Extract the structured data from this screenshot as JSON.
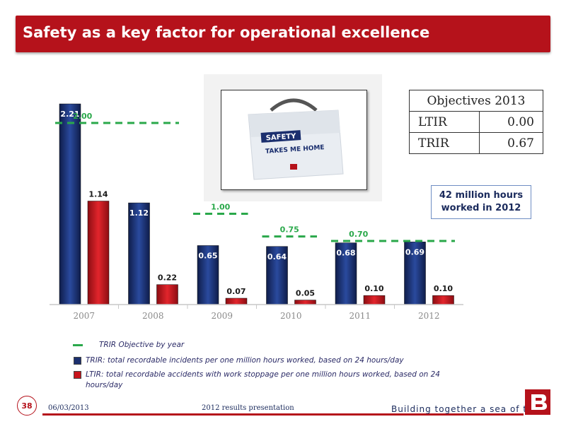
{
  "header": {
    "title": "Safety as a  key factor for operational excellence"
  },
  "chart_data": {
    "type": "bar",
    "categories": [
      "2007",
      "2008",
      "2009",
      "2010",
      "2011",
      "2012"
    ],
    "series": [
      {
        "name": "TRIR",
        "values": [
          2.21,
          1.12,
          0.65,
          0.64,
          0.68,
          0.69
        ],
        "labels": [
          "2.21",
          "1.12",
          "0.65",
          "0.64",
          "0.68",
          "0.69"
        ],
        "color": "#1b2f6e"
      },
      {
        "name": "LTIR",
        "values": [
          1.14,
          0.22,
          0.07,
          0.05,
          0.1,
          0.1
        ],
        "labels": [
          "1.14",
          "0.22",
          "0.07",
          "0.05",
          "0.10",
          "0.10"
        ],
        "color": "#c8141c"
      }
    ],
    "objectives": [
      {
        "category_from": "2007",
        "category_to": "2008",
        "value": 2.0,
        "label": "2.00"
      },
      {
        "category_from": "2009",
        "category_to": "2009",
        "value": 1.0,
        "label": "1.00"
      },
      {
        "category_from": "2010",
        "category_to": "2010",
        "value": 0.75,
        "label": "0.75"
      },
      {
        "category_from": "2011",
        "category_to": "2012",
        "value": 0.7,
        "label": "0.70"
      }
    ],
    "objective_color": "#2aa84a",
    "ylim": [
      0,
      2.21
    ]
  },
  "photo": {
    "line1": "SAFETY",
    "line2": "TAKES ME HOME"
  },
  "objectives_table": {
    "heading": "Objectives 2013",
    "rows": [
      {
        "label": "LTIR",
        "value": "0.00"
      },
      {
        "label": "TRIR",
        "value": "0.67"
      }
    ]
  },
  "hours_box": {
    "line1": "42 million hours",
    "line2": "worked in 2012"
  },
  "legend": {
    "objective": "TRIR Objective by year",
    "trir": "TRIR: total recordable incidents per one million hours worked, based on 24 hours/day",
    "ltir_line1": "LTIR: total recordable accidents with work stoppage per one million hours worked, based on 24",
    "ltir_line2": "hours/day"
  },
  "footer": {
    "page_number": "38",
    "date": "06/03/2013",
    "presentation": "2012 results presentation",
    "slogan": "Building together a sea of trust"
  }
}
